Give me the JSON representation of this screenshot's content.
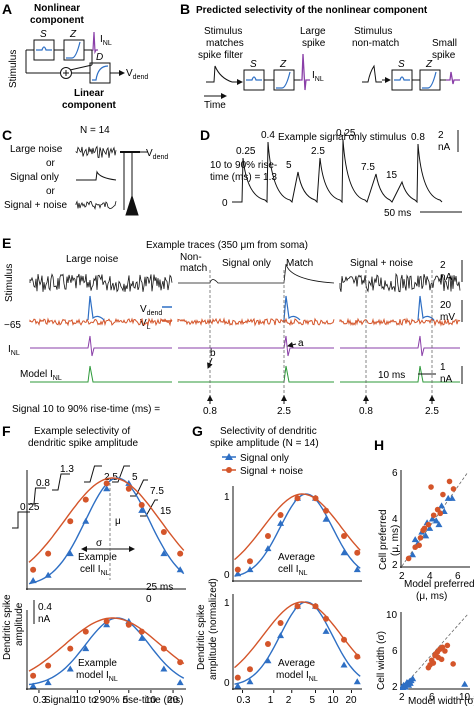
{
  "panel_labels": {
    "A": "A",
    "B": "B",
    "C": "C",
    "D": "D",
    "E": "E",
    "F": "F",
    "G": "G",
    "H": "H"
  },
  "colors": {
    "blue": "#2e6fc4",
    "orange": "#d4552a",
    "purple": "#8a3fa8",
    "green": "#2e9a3a",
    "black": "#111111"
  },
  "A": {
    "nonlinear_title_1": "Nonlinear",
    "nonlinear_title_2": "component",
    "stimulus": "Stimulus",
    "S": "S",
    "Z": "Z",
    "D": "D",
    "I": "I",
    "NL": "NL",
    "V": "V",
    "dend": "dend",
    "linear_title_1": "Linear",
    "linear_title_2": "component"
  },
  "B": {
    "title": "Predicted selectivity of the nonlinear component",
    "left_1": "Stimulus",
    "left_2": "matches",
    "left_3": "spike filter",
    "large_1": "Large",
    "large_2": "spike",
    "right_1": "Stimulus",
    "right_2": "non-match",
    "small_1": "Small",
    "small_2": "spike",
    "time": "Time",
    "S": "S",
    "Z": "Z",
    "I": "I",
    "NL": "NL"
  },
  "C": {
    "n": "N = 14",
    "large_noise": "Large noise",
    "or1": "or",
    "signal_only": "Signal only",
    "or2": "or",
    "signal_noise": "Signal + noise",
    "V": "V",
    "dend": "dend"
  },
  "D": {
    "title": "Example signal only stimulus",
    "rise_1": "10 to 90% rise-",
    "rise_2": "time (ms) = 1.3",
    "zero": "0",
    "scale_v": "2",
    "scale_u": "nA",
    "scale_t": "50 ms",
    "rise_times": [
      0.25,
      0.4,
      5,
      2.5,
      0.25,
      7.5,
      15,
      0.8
    ]
  },
  "E": {
    "title": "Example traces (350 μm from soma)",
    "large_noise": "Large noise",
    "non_match_1": "Non-",
    "non_match_2": "match",
    "signal_only": "Signal only",
    "match": "Match",
    "signal_noise": "Signal + noise",
    "stimulus": "Stimulus",
    "vdend": "V",
    "vdend_sub": "dend",
    "vl": "V",
    "vl_sub": "L",
    "minus65": "−65",
    "inl": "I",
    "inl_sub": "NL",
    "model": "Model I",
    "model_sub": "NL",
    "a": "a",
    "b": "b",
    "scale_na": "2",
    "scale_na_u": "nA",
    "scale_mv": "20",
    "scale_mv_u": "mV",
    "scale_na2": "1",
    "scale_na2_u": "nA",
    "scale_t": "10 ms",
    "footer": "Signal 10 to 90% rise-time (ms) =",
    "arrows": [
      0.8,
      2.5,
      0.8,
      2.5
    ]
  },
  "F": {
    "title_1": "Example selectivity of",
    "title_2": "dendritic spike amplitude",
    "ylabel_1": "Dendritic spike",
    "ylabel_2": "amplitude",
    "scale": "0.4",
    "scale_u": "nA",
    "cell_1": "Example",
    "cell_2": "cell I",
    "model_1": "Example",
    "model_2": "model I",
    "NL": "NL",
    "mu": "μ",
    "sigma": "σ",
    "ms25": "25 ms",
    "zero": "0",
    "insets": [
      "0.25",
      "0.8",
      "1.3",
      "2.5",
      "5",
      "7.5",
      "15"
    ],
    "xlabel": "Signal 10 to 90% rise-time (ms)",
    "xticks": [
      "0.3",
      "1",
      "2",
      "5",
      "10",
      "20"
    ]
  },
  "G": {
    "title_1": "Selectivity of dendritic",
    "title_2": "spike amplitude (N = 14)",
    "legend_signal": "Signal only",
    "legend_noise": "Signal + noise",
    "ylabel_1": "Dendritic spike",
    "ylabel_2": "amplitude (normalized)",
    "avg_cell_1": "Average",
    "avg_cell_2": "cell I",
    "avg_model_1": "Average",
    "avg_model_2": "model I",
    "NL": "NL",
    "yt0": "0",
    "yt1": "1",
    "xticks": [
      "0.3",
      "1",
      "2",
      "5",
      "10",
      "20"
    ]
  },
  "H": {
    "ylabel_top_1": "Cell preferred",
    "ylabel_top_2": "(μ, ms)",
    "xlabel_top_1": "Model preferred",
    "xlabel_top_2": "(μ, ms)",
    "ylabel_bot": "Cell width (σ)",
    "xlabel_bot": "Model width (σ)",
    "top_ticks": [
      "2",
      "4",
      "6"
    ],
    "bot_xticks": [
      "2",
      "6",
      "10"
    ],
    "bot_yticks": [
      "2",
      "6",
      "10"
    ]
  },
  "chart_data": [
    {
      "type": "line",
      "panel": "F-top",
      "x": [
        0.25,
        0.4,
        0.8,
        1.3,
        2.5,
        5,
        7.5,
        15,
        25
      ],
      "series": [
        {
          "name": "Signal only",
          "values": [
            0.05,
            0.1,
            0.3,
            0.6,
            0.9,
            0.95,
            0.7,
            0.3,
            0.15
          ]
        },
        {
          "name": "Signal + noise",
          "values": [
            0.15,
            0.3,
            0.6,
            0.8,
            0.95,
            0.9,
            0.75,
            0.5,
            0.3
          ]
        }
      ]
    },
    {
      "type": "line",
      "panel": "F-bottom",
      "x": [
        0.25,
        0.4,
        0.8,
        1.3,
        2.5,
        5,
        7.5,
        15,
        25
      ],
      "series": [
        {
          "name": "Signal only",
          "values": [
            0.0,
            0.05,
            0.25,
            0.55,
            0.9,
            0.95,
            0.7,
            0.25,
            0.05
          ]
        },
        {
          "name": "Signal + noise",
          "values": [
            0.15,
            0.3,
            0.55,
            0.8,
            0.95,
            0.9,
            0.8,
            0.55,
            0.35
          ]
        }
      ]
    },
    {
      "type": "line",
      "panel": "G-top",
      "x": [
        0.25,
        0.4,
        0.8,
        1.3,
        2.5,
        5,
        7.5,
        15,
        25
      ],
      "series": [
        {
          "name": "Signal only",
          "values": [
            0.05,
            0.1,
            0.35,
            0.65,
            0.95,
            0.95,
            0.7,
            0.3,
            0.1
          ]
        },
        {
          "name": "Signal + noise",
          "values": [
            0.1,
            0.2,
            0.5,
            0.75,
            0.95,
            0.95,
            0.8,
            0.5,
            0.3
          ]
        }
      ]
    },
    {
      "type": "line",
      "panel": "G-bottom",
      "x": [
        0.25,
        0.4,
        0.8,
        1.3,
        2.5,
        5,
        7.5,
        15,
        25
      ],
      "series": [
        {
          "name": "Signal only",
          "values": [
            0.0,
            0.05,
            0.3,
            0.6,
            0.95,
            0.95,
            0.65,
            0.25,
            0.05
          ]
        },
        {
          "name": "Signal + noise",
          "values": [
            0.1,
            0.2,
            0.5,
            0.75,
            0.95,
            0.95,
            0.8,
            0.55,
            0.35
          ]
        }
      ]
    },
    {
      "type": "scatter",
      "panel": "H-top",
      "xlim": [
        2,
        7
      ],
      "ylim": [
        2,
        7
      ],
      "series": [
        {
          "name": "Signal only",
          "points": [
            [
              2.8,
              2.6
            ],
            [
              3.2,
              3.2
            ],
            [
              3.5,
              3.8
            ],
            [
              3.8,
              3.6
            ],
            [
              4.1,
              4.0
            ],
            [
              4.3,
              4.5
            ],
            [
              4.6,
              4.4
            ],
            [
              5.0,
              5.2
            ],
            [
              5.2,
              4.9
            ],
            [
              5.5,
              5.6
            ],
            [
              3.0,
              3.4
            ],
            [
              4.8,
              4.2
            ],
            [
              3.9,
              4.3
            ],
            [
              5.8,
              5.6
            ]
          ]
        },
        {
          "name": "Signal + noise",
          "points": [
            [
              2.5,
              2.4
            ],
            [
              3.0,
              3.0
            ],
            [
              3.4,
              3.5
            ],
            [
              3.7,
              4.0
            ],
            [
              4.0,
              4.2
            ],
            [
              4.4,
              4.7
            ],
            [
              4.7,
              5.0
            ],
            [
              5.1,
              5.8
            ],
            [
              5.6,
              6.5
            ],
            [
              4.2,
              6.2
            ],
            [
              3.3,
              3.1
            ],
            [
              4.9,
              4.8
            ],
            [
              3.6,
              3.9
            ],
            [
              5.9,
              6.1
            ]
          ]
        }
      ]
    },
    {
      "type": "scatter",
      "panel": "H-bottom",
      "xlim": [
        2,
        10
      ],
      "ylim": [
        2,
        10
      ],
      "series": [
        {
          "name": "Signal only",
          "points": [
            [
              2.1,
              2.0
            ],
            [
              2.3,
              2.2
            ],
            [
              2.5,
              2.4
            ],
            [
              2.7,
              2.5
            ],
            [
              2.2,
              2.3
            ],
            [
              2.9,
              2.7
            ],
            [
              3.1,
              2.8
            ],
            [
              2.4,
              2.1
            ],
            [
              2.6,
              2.6
            ],
            [
              3.3,
              3.0
            ],
            [
              2.8,
              2.3
            ],
            [
              3.0,
              2.5
            ],
            [
              9.6,
              2.4
            ],
            [
              2.0,
              2.1
            ]
          ]
        },
        {
          "name": "Signal + noise",
          "points": [
            [
              5.2,
              4.2
            ],
            [
              5.6,
              5.0
            ],
            [
              6.0,
              5.5
            ],
            [
              6.3,
              5.9
            ],
            [
              6.6,
              6.2
            ],
            [
              5.8,
              4.7
            ],
            [
              6.9,
              6.4
            ],
            [
              7.2,
              6.0
            ],
            [
              6.4,
              5.3
            ],
            [
              5.4,
              4.5
            ],
            [
              7.5,
              6.6
            ],
            [
              6.1,
              5.7
            ],
            [
              8.2,
              4.6
            ],
            [
              6.8,
              5.1
            ]
          ]
        }
      ]
    }
  ]
}
